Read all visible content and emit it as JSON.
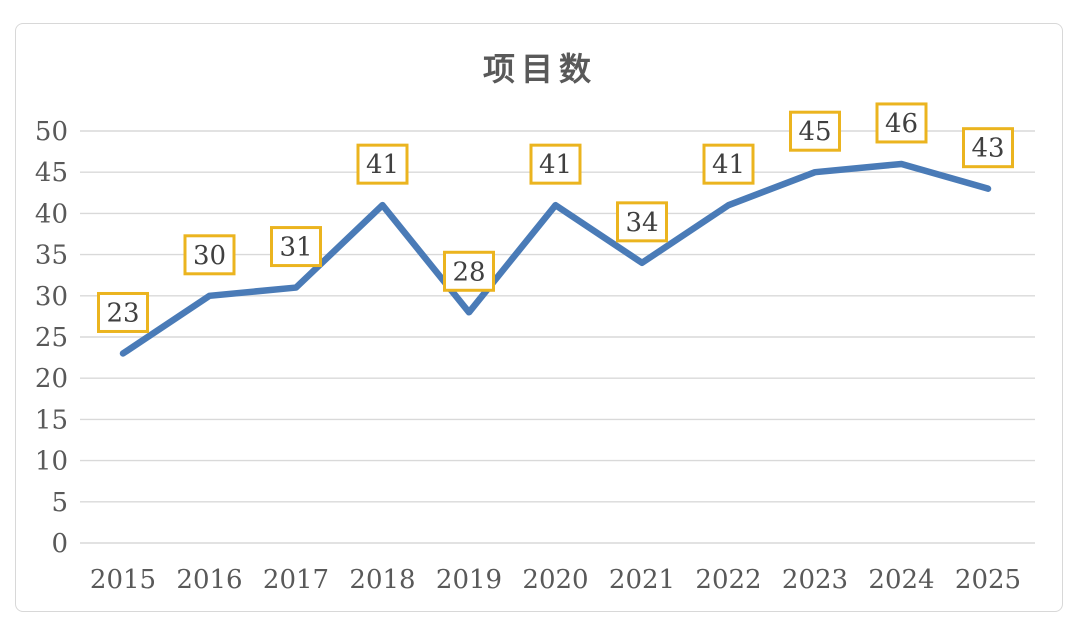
{
  "chart_data": {
    "type": "line",
    "title": "项目数",
    "categories": [
      "2015",
      "2016",
      "2017",
      "2018",
      "2019",
      "2020",
      "2021",
      "2022",
      "2023",
      "2024",
      "2025"
    ],
    "series": [
      {
        "name": "项目数",
        "values": [
          23,
          30,
          31,
          41,
          28,
          41,
          34,
          41,
          45,
          46,
          43
        ]
      }
    ],
    "ylim": [
      0,
      50
    ],
    "yticks": [
      0,
      5,
      10,
      15,
      20,
      25,
      30,
      35,
      40,
      45,
      50
    ],
    "grid": true,
    "legend_position": "none",
    "data_labels": true,
    "colors": {
      "line": "#4a7bb7",
      "label_box_border": "#ebb41f",
      "label_box_fill": "#ffffff",
      "label_text": "#404040",
      "axis_text": "#595959",
      "gridline": "#d9d9d9",
      "panel_border": "#d8d8d8",
      "background": "#ffffff"
    }
  }
}
